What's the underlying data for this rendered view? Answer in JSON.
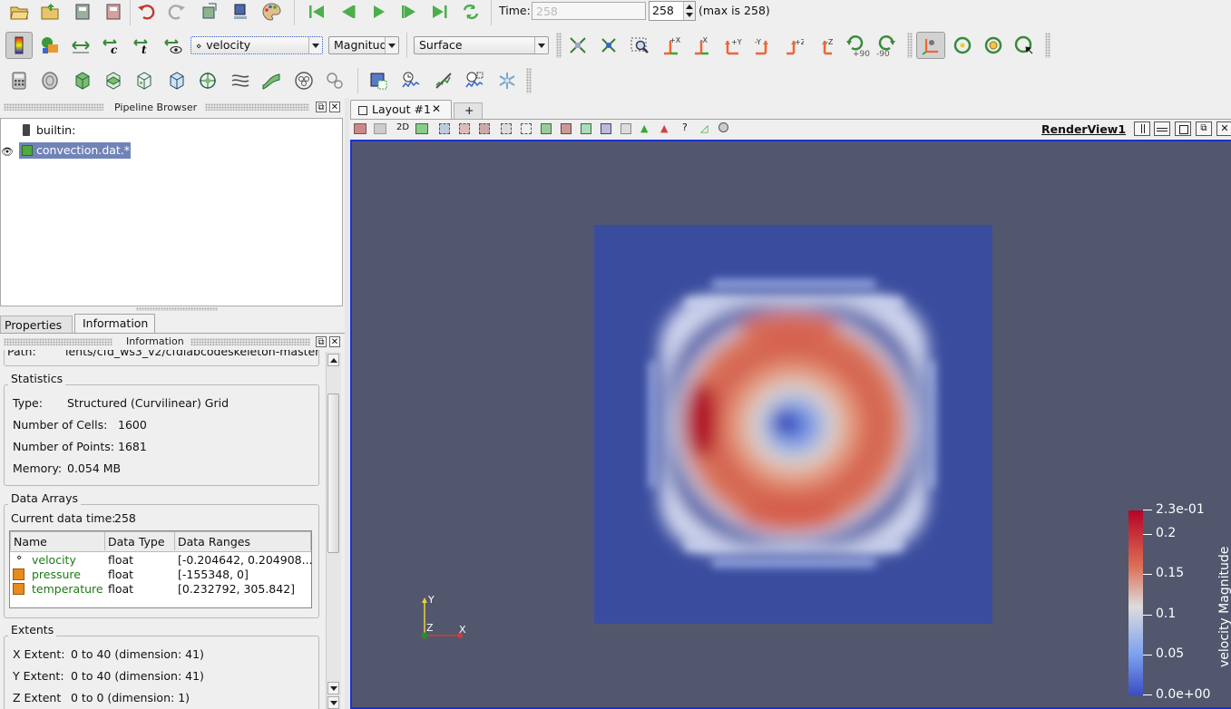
{
  "toolbar_time": {
    "time_label": "Time:",
    "time_input_value": "258",
    "timestep_value": "258",
    "max_text": "(max is 258)"
  },
  "toolbar_color": {
    "array_value": "velocity",
    "component_value": "Magnitude",
    "representation_value": "Surface",
    "view_buttons": [
      "+X",
      "-X",
      "+Y",
      "-Y",
      "+Z",
      "-Z"
    ],
    "rotate_plus": "+90",
    "rotate_minus": "-90"
  },
  "pipeline": {
    "title": "Pipeline Browser",
    "items": [
      "builtin:",
      "convection.dat.*"
    ]
  },
  "tabs": [
    "Properties",
    "Information"
  ],
  "information": {
    "title": "Information",
    "path_label": "Path:",
    "path_value": "ients/cfd_ws3_v2/cfdlabcodeskeleton-master",
    "statistics_title": "Statistics",
    "type_label": "Type:",
    "type_value": "Structured (Curvilinear) Grid",
    "cells_label": "Number of Cells:",
    "cells_value": "1600",
    "points_label": "Number of Points:",
    "points_value": "1681",
    "memory_label": "Memory:",
    "memory_value": "0.054 MB",
    "arrays_title": "Data Arrays",
    "current_time_label": "Current data time:",
    "current_time_value": "258",
    "columns": [
      "Name",
      "Data Type",
      "Data Ranges"
    ],
    "rows": [
      {
        "name": "velocity",
        "type": "float",
        "range": "[-0.204642, 0.204908..."
      },
      {
        "name": "pressure",
        "type": "float",
        "range": "[-155348, 0]"
      },
      {
        "name": "temperature",
        "type": "float",
        "range": "[0.232792, 305.842]"
      }
    ],
    "extents_title": "Extents",
    "x_extent_label": "X Extent:",
    "x_extent_value": "0 to 40 (dimension: 41)",
    "y_extent_label": "Y Extent:",
    "y_extent_value": "0 to 40 (dimension: 41)",
    "z_extent_label": "Z Extent",
    "z_extent_value": "0 to 0 (dimension: 1)"
  },
  "layout": {
    "tab_label": "Layout #1",
    "add_tab": "+",
    "mode_2d": "2D",
    "view_name": "RenderView1"
  },
  "render": {
    "background_color": "#52576e",
    "axes": {
      "y": "Y",
      "z": "Z",
      "x": "X"
    },
    "colorbar": {
      "title": "velocity Magnitude",
      "min_label": "0.0e+00",
      "max_label": "2.3e-01",
      "ticks": [
        "0.2",
        "0.15",
        "0.1",
        "0.05"
      ],
      "colors": [
        "#b40426",
        "#dd6e55",
        "#dcdcdc",
        "#7ea0f0",
        "#3b4cc0"
      ]
    }
  }
}
